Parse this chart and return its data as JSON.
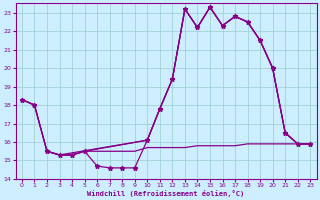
{
  "bg_color": "#cceeff",
  "line_color": "#880088",
  "grid_color": "#99cccc",
  "xlim": [
    -0.5,
    23.5
  ],
  "ylim": [
    14,
    23.5
  ],
  "xticks": [
    0,
    1,
    2,
    3,
    4,
    5,
    6,
    7,
    8,
    9,
    10,
    11,
    12,
    13,
    14,
    15,
    16,
    17,
    18,
    19,
    20,
    21,
    22,
    23
  ],
  "yticks": [
    14,
    15,
    16,
    17,
    18,
    19,
    20,
    21,
    22,
    23
  ],
  "xlabel": "Windchill (Refroidissement éolien,°C)",
  "line_main_x": [
    0,
    1,
    2,
    3,
    4,
    5,
    6,
    7,
    8,
    9,
    10,
    11,
    12,
    13,
    14,
    15,
    16,
    17,
    18,
    19,
    20,
    21,
    22,
    23
  ],
  "line_main_y": [
    18.3,
    18.0,
    15.5,
    15.3,
    15.3,
    15.5,
    14.7,
    14.6,
    14.6,
    14.6,
    16.1,
    17.8,
    19.4,
    23.2,
    22.2,
    23.3,
    22.3,
    22.8,
    22.5,
    21.5,
    20.0,
    16.5,
    15.9,
    15.9
  ],
  "line2_x": [
    0,
    1,
    2,
    3,
    4,
    5,
    10,
    11,
    12,
    13,
    14,
    15,
    16,
    17,
    18,
    19,
    20,
    21,
    22,
    23
  ],
  "line2_y": [
    18.3,
    18.0,
    15.5,
    15.3,
    15.3,
    15.5,
    16.1,
    17.8,
    19.4,
    23.2,
    22.2,
    23.3,
    22.3,
    22.8,
    22.5,
    21.5,
    20.0,
    16.5,
    15.9,
    15.9
  ],
  "line3_x": [
    0,
    1,
    2,
    3,
    10,
    11,
    12,
    13,
    14,
    15,
    16,
    17,
    18,
    19,
    20,
    21,
    22,
    23
  ],
  "line3_y": [
    18.3,
    18.0,
    15.5,
    15.3,
    16.1,
    17.8,
    19.4,
    23.2,
    22.2,
    23.3,
    22.3,
    22.8,
    22.5,
    21.5,
    20.0,
    16.5,
    15.9,
    15.9
  ],
  "line4_x": [
    2,
    3,
    4,
    5,
    6,
    7,
    8,
    9,
    10,
    11,
    12,
    13,
    14,
    15,
    16,
    17,
    18,
    19,
    20,
    21,
    22,
    23
  ],
  "line4_y": [
    15.5,
    15.3,
    15.3,
    15.5,
    15.5,
    15.5,
    15.5,
    15.5,
    15.7,
    15.7,
    15.7,
    15.7,
    15.8,
    15.8,
    15.8,
    15.8,
    15.9,
    15.9,
    15.9,
    15.9,
    15.9,
    15.9
  ]
}
